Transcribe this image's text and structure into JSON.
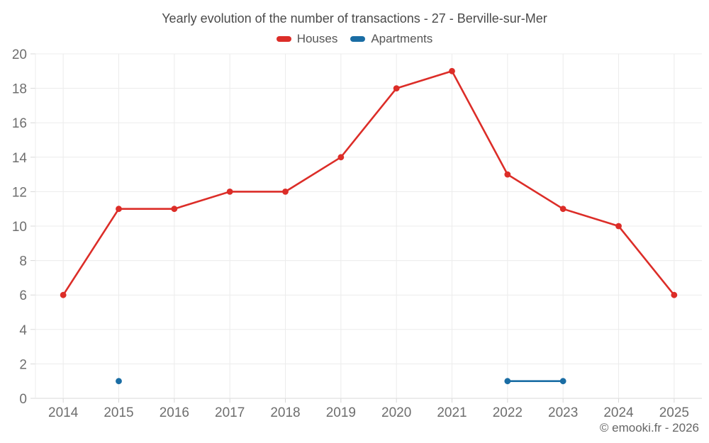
{
  "title": "Yearly evolution of the number of transactions - 27 - Berville-sur-Mer",
  "legend": [
    {
      "label": "Houses",
      "color": "#dc2d28"
    },
    {
      "label": "Apartments",
      "color": "#1a6da4"
    }
  ],
  "footer": {
    "copyright": "© emooki.fr - 2026"
  },
  "chart_data": {
    "type": "line",
    "title": "Yearly evolution of the number of transactions - 27 - Berville-sur-Mer",
    "categories": [
      "2014",
      "2015",
      "2016",
      "2017",
      "2018",
      "2019",
      "2020",
      "2021",
      "2022",
      "2023",
      "2024",
      "2025"
    ],
    "series": [
      {
        "name": "Houses",
        "color": "#dc2d28",
        "values": [
          6,
          11,
          11,
          12,
          12,
          14,
          18,
          19,
          13,
          11,
          10,
          6
        ]
      },
      {
        "name": "Apartments",
        "color": "#1a6da4",
        "values": [
          null,
          1,
          null,
          null,
          null,
          null,
          null,
          null,
          1,
          1,
          null,
          null
        ]
      }
    ],
    "xlabel": "",
    "ylabel": "",
    "ylim": [
      0,
      20
    ],
    "yticks": [
      0,
      2,
      4,
      6,
      8,
      10,
      12,
      14,
      16,
      18,
      20
    ],
    "grid": true,
    "legend_position": "top"
  }
}
